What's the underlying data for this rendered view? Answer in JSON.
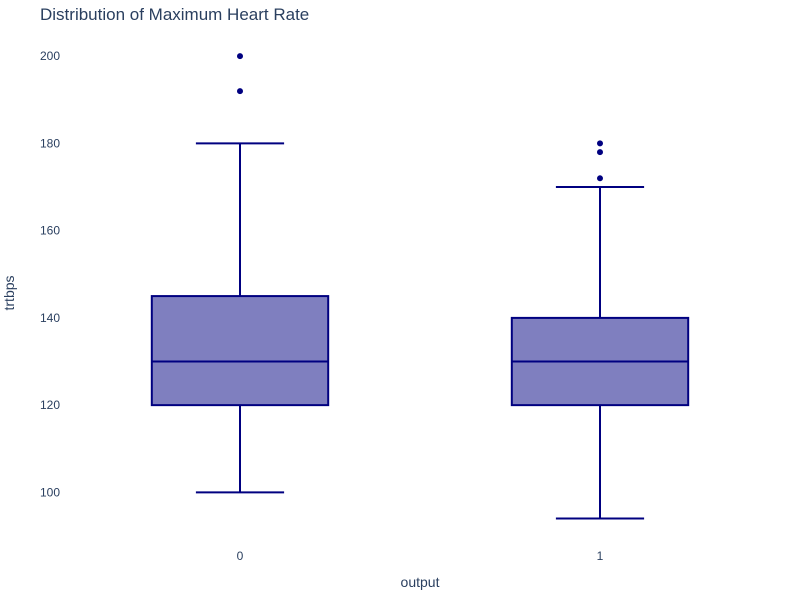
{
  "chart_data": {
    "type": "box",
    "title": "Distribution of Maximum Heart Rate",
    "xlabel": "output",
    "ylabel": "trtbps",
    "categories": [
      "0",
      "1"
    ],
    "ylim": [
      90,
      206
    ],
    "yticks": [
      100,
      120,
      140,
      160,
      180,
      200
    ],
    "grid": false,
    "legend": "none",
    "boxes": [
      {
        "category": "0",
        "min": 100,
        "q1": 120,
        "median": 130,
        "q3": 145,
        "max": 180,
        "outliers": [
          192,
          200
        ]
      },
      {
        "category": "1",
        "min": 94,
        "q1": 120,
        "median": 130,
        "q3": 140,
        "max": 170,
        "outliers": [
          172,
          178,
          180
        ]
      }
    ],
    "colors": {
      "fill": "#7f7fbf",
      "line": "#000080",
      "text": "#2a3f5f",
      "title": "#2a3f5f"
    }
  }
}
